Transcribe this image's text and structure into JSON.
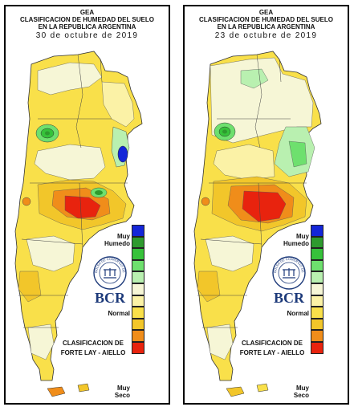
{
  "panels": [
    {
      "header_line1": "GEA",
      "header_line2": "CLASIFICACION DE HUMEDAD DEL SUELO",
      "header_line3": "EN LA REPUBLICA ARGENTINA",
      "date": "30 de octubre de 2019"
    },
    {
      "header_line1": "GEA",
      "header_line2": "CLASIFICACION DE HUMEDAD DEL SUELO",
      "header_line3": "EN LA REPUBLICA ARGENTINA",
      "date": "23 de octubre de 2019"
    }
  ],
  "legend": {
    "label_top_1": "Muy",
    "label_top_2": "Humedo",
    "label_mid": "Normal",
    "label_bottom_1": "Muy",
    "label_bottom_2": "Seco",
    "colors": [
      "#1426d8",
      "#2e9a2e",
      "#36c23a",
      "#6ee06e",
      "#b9f0b0",
      "#f6f6d6",
      "#fbf2a6",
      "#f9e04a",
      "#f2c62a",
      "#f08d1a",
      "#e8230e"
    ]
  },
  "classification": {
    "line1": "CLASIFICACION DE",
    "line2": "FORTE LAY - AIELLO"
  },
  "logo": {
    "text": "BCR",
    "seal_text": "BOLSA DE COMERCIO DE ROSARIO"
  }
}
